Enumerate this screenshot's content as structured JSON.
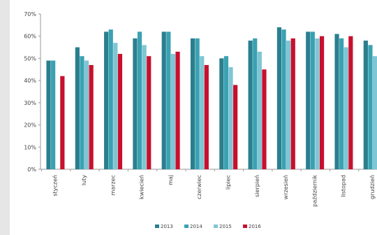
{
  "chart_data": {
    "type": "bar",
    "title": "",
    "xlabel": "",
    "ylabel": "",
    "ylim": [
      0,
      70
    ],
    "yticks": [
      "0%",
      "10%",
      "20%",
      "30%",
      "40%",
      "50%",
      "60%",
      "70%"
    ],
    "grid": false,
    "legend_position": "bottom",
    "categories": [
      "styczeń",
      "luty",
      "marzec",
      "kwiecień",
      "maj",
      "czerwiec",
      "lipiec",
      "sierpień",
      "wrzesień",
      "październik",
      "listopad",
      "grudzień"
    ],
    "series": [
      {
        "name": "2013",
        "color": "#2a7f8f",
        "values": [
          49,
          55,
          62,
          59,
          62,
          59,
          50,
          58,
          64,
          62,
          61,
          58
        ]
      },
      {
        "name": "2014",
        "color": "#3aa1b2",
        "values": [
          49,
          51,
          63,
          62,
          62,
          59,
          51,
          59,
          63,
          62,
          59,
          56
        ]
      },
      {
        "name": "2015",
        "color": "#7fc6d4",
        "values": [
          null,
          49,
          57,
          56,
          52,
          51,
          46,
          53,
          58,
          59,
          55,
          51
        ]
      },
      {
        "name": "2016",
        "color": "#c8102e",
        "values": [
          42,
          47,
          52,
          51,
          53,
          47,
          38,
          45,
          59,
          60,
          60,
          null
        ]
      }
    ]
  }
}
